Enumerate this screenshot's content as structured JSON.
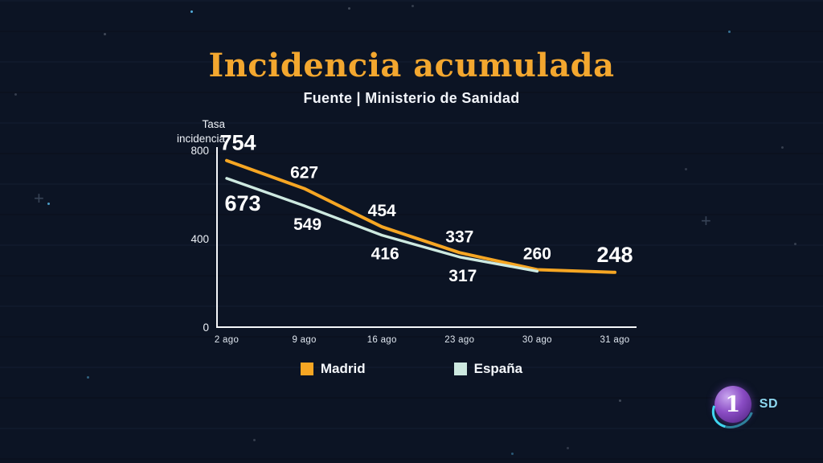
{
  "header": {
    "title": "Incidencia acumulada",
    "subtitle": "Fuente | Ministerio de Sanidad"
  },
  "chart_data": {
    "type": "line",
    "x": [
      "2 ago",
      "9 ago",
      "16 ago",
      "23 ago",
      "30 ago",
      "31 ago"
    ],
    "ylabel": "Tasa incidencia",
    "yticks": [
      0,
      400,
      800
    ],
    "ylim": [
      0,
      800
    ],
    "grid": false,
    "legend_position": "bottom",
    "series": [
      {
        "name": "Madrid",
        "color": "#F6A623",
        "values": [
          754,
          627,
          454,
          337,
          260,
          248
        ],
        "label_mask": [
          1,
          1,
          1,
          1,
          1,
          1
        ]
      },
      {
        "name": "España",
        "color": "#CDE9E0",
        "values": [
          673,
          549,
          416,
          317,
          253,
          null
        ],
        "label_mask": [
          1,
          1,
          1,
          1,
          0,
          0
        ]
      }
    ]
  },
  "branding": {
    "channel_number": "1",
    "quality_label": "SD"
  },
  "colors": {
    "background": "#0C1424",
    "title": "#F3A72F",
    "axis": "#F5F7FA",
    "madrid_line": "#F6A623",
    "espana_line": "#CDE9E0"
  },
  "decor": {
    "cross_glyph": "+"
  }
}
